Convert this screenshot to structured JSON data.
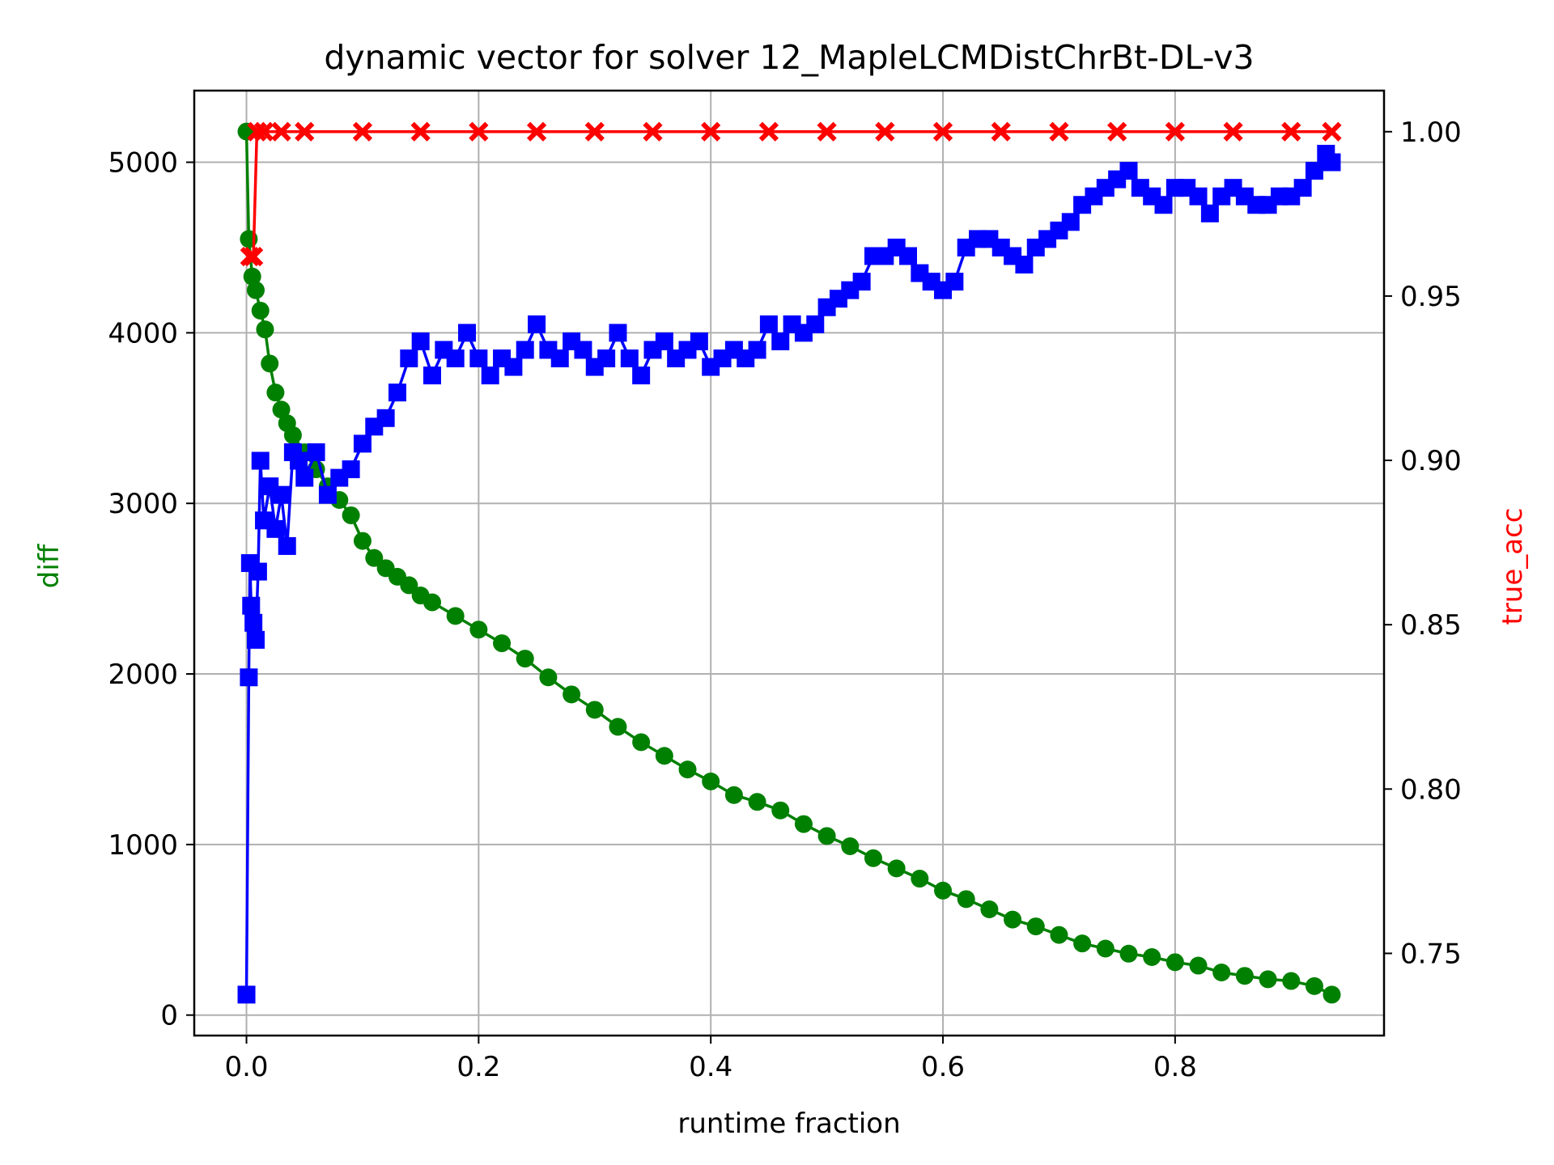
{
  "chart_data": {
    "type": "line",
    "title": "dynamic vector for solver 12_MapleLCMDistChrBt-DL-v3",
    "xlabel": "runtime fraction",
    "ylabel_left": "diff",
    "ylabel_right": "true_acc",
    "xlim": [
      -0.045,
      0.98
    ],
    "ylim_left": [
      -120,
      5420
    ],
    "ylim_right": [
      0.725,
      1.0125
    ],
    "x_ticks": [
      0.0,
      0.2,
      0.4,
      0.6,
      0.8
    ],
    "x_tick_labels": [
      "0.0",
      "0.2",
      "0.4",
      "0.6",
      "0.8"
    ],
    "y_left_ticks": [
      0,
      1000,
      2000,
      3000,
      4000,
      5000
    ],
    "y_left_tick_labels": [
      "0",
      "1000",
      "2000",
      "3000",
      "4000",
      "5000"
    ],
    "y_right_ticks": [
      0.75,
      0.8,
      0.85,
      0.9,
      0.95,
      1.0
    ],
    "y_right_tick_labels": [
      "0.75",
      "0.80",
      "0.85",
      "0.90",
      "0.95",
      "1.00"
    ],
    "grid": true,
    "colors": {
      "series_green": "#008000",
      "series_blue": "#0000ff",
      "series_red": "#ff0000"
    },
    "series": [
      {
        "axis": "left",
        "marker": "circle",
        "color": "#008000",
        "x": [
          0.0,
          0.002,
          0.005,
          0.008,
          0.012,
          0.016,
          0.02,
          0.025,
          0.03,
          0.035,
          0.04,
          0.05,
          0.06,
          0.07,
          0.08,
          0.09,
          0.1,
          0.11,
          0.12,
          0.13,
          0.14,
          0.15,
          0.16,
          0.18,
          0.2,
          0.22,
          0.24,
          0.26,
          0.28,
          0.3,
          0.32,
          0.34,
          0.36,
          0.38,
          0.4,
          0.42,
          0.44,
          0.46,
          0.48,
          0.5,
          0.52,
          0.54,
          0.56,
          0.58,
          0.6,
          0.62,
          0.64,
          0.66,
          0.68,
          0.7,
          0.72,
          0.74,
          0.76,
          0.78,
          0.8,
          0.82,
          0.84,
          0.86,
          0.88,
          0.9,
          0.92,
          0.935
        ],
        "y": [
          5180,
          4550,
          4330,
          4250,
          4130,
          4020,
          3820,
          3650,
          3550,
          3470,
          3400,
          3300,
          3200,
          3100,
          3020,
          2930,
          2780,
          2680,
          2620,
          2570,
          2520,
          2460,
          2420,
          2340,
          2260,
          2180,
          2090,
          1980,
          1880,
          1790,
          1690,
          1600,
          1520,
          1440,
          1370,
          1290,
          1250,
          1200,
          1120,
          1050,
          990,
          920,
          860,
          800,
          730,
          680,
          620,
          560,
          520,
          470,
          420,
          390,
          360,
          340,
          310,
          290,
          250,
          230,
          210,
          200,
          170,
          120
        ]
      },
      {
        "axis": "left",
        "marker": "square",
        "color": "#0000ff",
        "x": [
          0.0,
          0.002,
          0.003,
          0.004,
          0.006,
          0.008,
          0.01,
          0.012,
          0.015,
          0.02,
          0.025,
          0.03,
          0.035,
          0.04,
          0.045,
          0.05,
          0.06,
          0.07,
          0.08,
          0.09,
          0.1,
          0.11,
          0.12,
          0.13,
          0.14,
          0.15,
          0.16,
          0.17,
          0.18,
          0.19,
          0.2,
          0.21,
          0.22,
          0.23,
          0.24,
          0.25,
          0.26,
          0.27,
          0.28,
          0.29,
          0.3,
          0.31,
          0.32,
          0.33,
          0.34,
          0.35,
          0.36,
          0.37,
          0.38,
          0.39,
          0.4,
          0.41,
          0.42,
          0.43,
          0.44,
          0.45,
          0.46,
          0.47,
          0.48,
          0.49,
          0.5,
          0.51,
          0.52,
          0.53,
          0.54,
          0.55,
          0.56,
          0.57,
          0.58,
          0.59,
          0.6,
          0.61,
          0.62,
          0.63,
          0.64,
          0.65,
          0.66,
          0.67,
          0.68,
          0.69,
          0.7,
          0.71,
          0.72,
          0.73,
          0.74,
          0.75,
          0.76,
          0.77,
          0.78,
          0.79,
          0.8,
          0.81,
          0.82,
          0.83,
          0.84,
          0.85,
          0.86,
          0.87,
          0.88,
          0.89,
          0.9,
          0.91,
          0.92,
          0.93,
          0.935
        ],
        "y": [
          120,
          1980,
          2650,
          2400,
          2300,
          2200,
          2600,
          3250,
          2900,
          3100,
          2850,
          3050,
          2750,
          3300,
          3250,
          3150,
          3300,
          3050,
          3150,
          3200,
          3350,
          3450,
          3500,
          3650,
          3850,
          3950,
          3750,
          3900,
          3850,
          4000,
          3850,
          3750,
          3850,
          3800,
          3900,
          4050,
          3900,
          3850,
          3950,
          3900,
          3800,
          3850,
          4000,
          3850,
          3750,
          3900,
          3950,
          3850,
          3900,
          3950,
          3800,
          3850,
          3900,
          3850,
          3900,
          4050,
          3950,
          4050,
          4000,
          4050,
          4150,
          4200,
          4250,
          4300,
          4450,
          4450,
          4500,
          4450,
          4350,
          4300,
          4250,
          4300,
          4500,
          4550,
          4550,
          4500,
          4450,
          4400,
          4500,
          4550,
          4600,
          4650,
          4750,
          4800,
          4850,
          4900,
          4950,
          4850,
          4800,
          4750,
          4850,
          4850,
          4800,
          4700,
          4800,
          4850,
          4800,
          4750,
          4750,
          4800,
          4800,
          4850,
          4950,
          5050,
          5000
        ]
      },
      {
        "axis": "right",
        "marker": "x",
        "color": "#ff0000",
        "x": [
          0.003,
          0.006,
          0.009,
          0.015,
          0.03,
          0.05,
          0.1,
          0.15,
          0.2,
          0.25,
          0.3,
          0.35,
          0.4,
          0.45,
          0.5,
          0.55,
          0.6,
          0.65,
          0.7,
          0.75,
          0.8,
          0.85,
          0.9,
          0.935
        ],
        "y": [
          0.962,
          0.962,
          1.0,
          1.0,
          1.0,
          1.0,
          1.0,
          1.0,
          1.0,
          1.0,
          1.0,
          1.0,
          1.0,
          1.0,
          1.0,
          1.0,
          1.0,
          1.0,
          1.0,
          1.0,
          1.0,
          1.0,
          1.0,
          1.0
        ]
      }
    ]
  }
}
